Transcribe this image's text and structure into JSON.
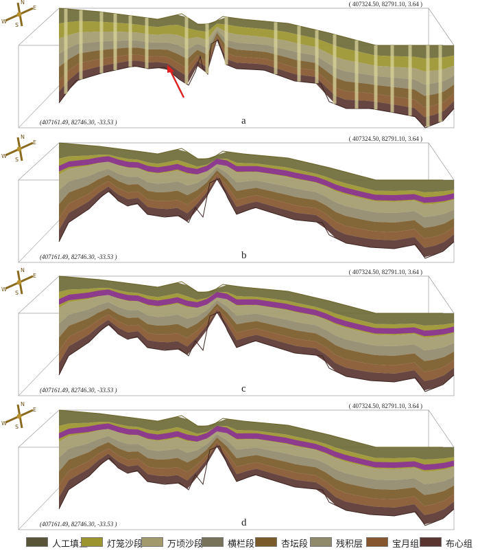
{
  "panels": [
    {
      "label": "a",
      "coord_top": "( 407324.50, 82791.10, 3.64 )",
      "coord_bottom": "(407161.49, 82746.30, -33.53 )",
      "has_arrow": true,
      "purple_band": false
    },
    {
      "label": "b",
      "coord_top": "( 407324.50, 82791.10, 3.64 )",
      "coord_bottom": "(407161.49, 82746.30, -33.53 )",
      "has_arrow": false,
      "purple_band": true
    },
    {
      "label": "c",
      "coord_top": "( 407324.50, 82791.10, 3.64 )",
      "coord_bottom": "(407161.49, 82746.30, -33.53 )",
      "has_arrow": false,
      "purple_band": true
    },
    {
      "label": "d",
      "coord_top": "( 407324.50, 82791.10, 3.64 )",
      "coord_bottom": "(407161.49, 82746.30, -33.53 )",
      "has_arrow": false,
      "purple_band": true
    }
  ],
  "compass": {
    "labels": [
      "N",
      "S",
      "W",
      "E"
    ],
    "icon": "compass-icon"
  },
  "legend": [
    {
      "label": "人工填土",
      "color": "#575438"
    },
    {
      "label": "灯笼沙段",
      "color": "#9b942f"
    },
    {
      "label": "万顷沙段",
      "color": "#a39a6c"
    },
    {
      "label": "横栏段",
      "color": "#77725a"
    },
    {
      "label": "杏坛段",
      "color": "#7a5a28"
    },
    {
      "label": "残积层",
      "color": "#90896a"
    },
    {
      "label": "宝月组",
      "color": "#86562e"
    },
    {
      "label": "布心组",
      "color": "#5a3530"
    }
  ],
  "colors": {
    "purple": "#8a2a9a",
    "arrow": "#e02020"
  }
}
